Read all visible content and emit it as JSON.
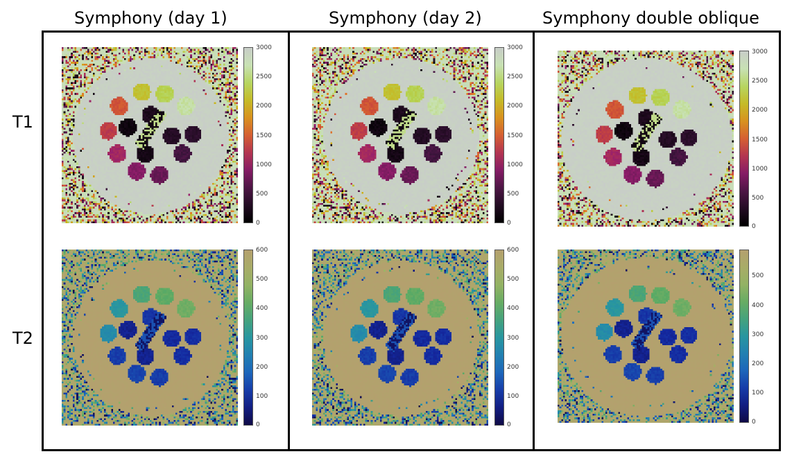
{
  "columns": [
    {
      "title": "Symphony (day 1)"
    },
    {
      "title": "Symphony (day 2)"
    },
    {
      "title": "Symphony double oblique"
    }
  ],
  "rows": [
    {
      "label": "T1",
      "colorbar": {
        "colormap": "t1-lipari",
        "max": 3000,
        "ticks": [
          "3000",
          "2500",
          "2000",
          "1500",
          "1000",
          "500",
          "0"
        ]
      }
    },
    {
      "label": "T2",
      "colorbar": {
        "colormap": "t2-navia",
        "max": 600,
        "ticks": [
          "600",
          "500",
          "400",
          "300",
          "200",
          "100",
          "0"
        ]
      }
    }
  ],
  "double_oblique_ticks": {
    "t1": [
      "3000",
      "2500",
      "2000",
      "1500",
      "1000",
      "500",
      "0"
    ],
    "t2": [
      "500",
      "400",
      "300",
      "200",
      "100",
      "0"
    ]
  },
  "colors": {
    "t1_background": "#c5cdc6",
    "t2_background": "#b59f6d",
    "frame": "#000000"
  }
}
